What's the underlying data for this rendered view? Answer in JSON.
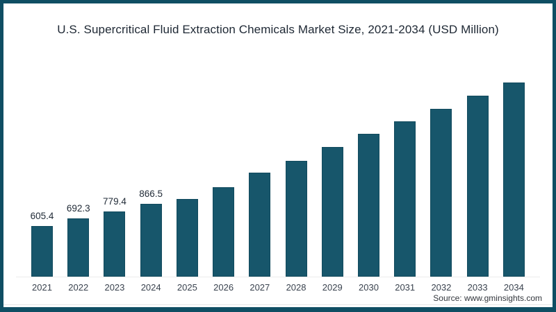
{
  "chart_data": {
    "type": "bar",
    "title": "U.S. Supercritical Fluid Extraction Chemicals Market Size, 2021-2034 (USD Million)",
    "categories": [
      "2021",
      "2022",
      "2023",
      "2024",
      "2025",
      "2026",
      "2027",
      "2028",
      "2029",
      "2030",
      "2031",
      "2032",
      "2033",
      "2034"
    ],
    "values": [
      605.4,
      692.3,
      779.4,
      866.5,
      930,
      1070,
      1240,
      1385,
      1550,
      1705,
      1855,
      2005,
      2160,
      2320
    ],
    "data_labels": [
      "605.4",
      "692.3",
      "779.4",
      "866.5",
      "",
      "",
      "",
      "",
      "",
      "",
      "",
      "",
      "",
      ""
    ],
    "xlabel": "",
    "ylabel": "",
    "unit": "USD Million",
    "ylim": [
      0,
      2400
    ],
    "grid": false,
    "legend_position": null,
    "bar_color": "#17566b"
  },
  "source": {
    "label": "Source: www.gminsights.com"
  },
  "colors": {
    "frame_border": "#0f4e63",
    "bar_fill": "#17566b",
    "bar_border": "#114a5d",
    "title_text": "#1d2733",
    "label_text": "#222c38",
    "year_text": "#39424e",
    "source_text": "#33373d",
    "axis_line": "#ececec",
    "separator_line": "#e7e7e7"
  }
}
